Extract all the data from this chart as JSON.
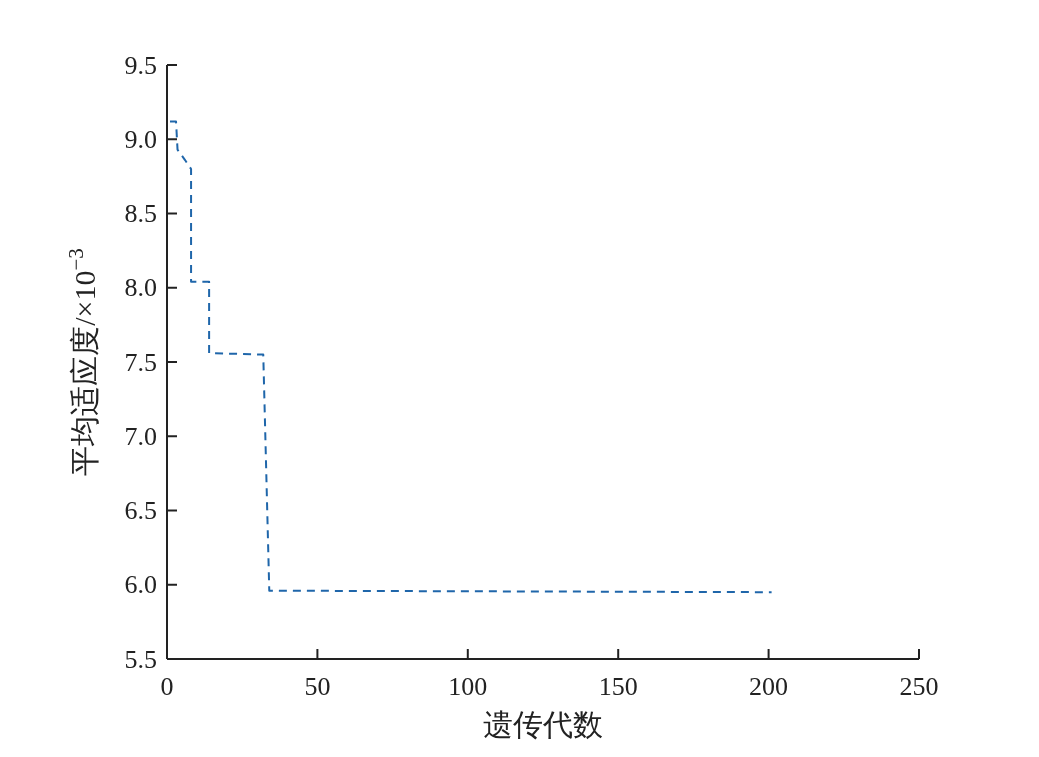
{
  "chart_data": {
    "type": "line",
    "xlabel": "遗传代数",
    "ylabel": "平均适应度/×10$^{−3}$",
    "x": [
      1,
      3,
      3.5,
      6,
      8,
      8,
      14,
      14,
      32,
      34,
      201
    ],
    "series": [
      {
        "color": "#1f66aa",
        "values": [
          9.12,
          9.12,
          8.93,
          8.86,
          8.8,
          8.04,
          8.04,
          7.56,
          7.55,
          5.96,
          5.95
        ]
      }
    ],
    "xlim": [
      0,
      250
    ],
    "xticks": [
      0,
      50,
      100,
      150,
      200,
      250
    ],
    "ylim": [
      5.5,
      9.5
    ],
    "yticks": [
      5.5,
      {
        "value": 6,
        "label": "6.0"
      },
      6.5,
      {
        "value": 7,
        "label": "7.0"
      },
      7.5,
      {
        "value": 8,
        "label": "8.0"
      },
      8.5,
      {
        "value": 9,
        "label": "9.0"
      },
      9.5
    ],
    "line_style": "dashed",
    "grid": false
  }
}
